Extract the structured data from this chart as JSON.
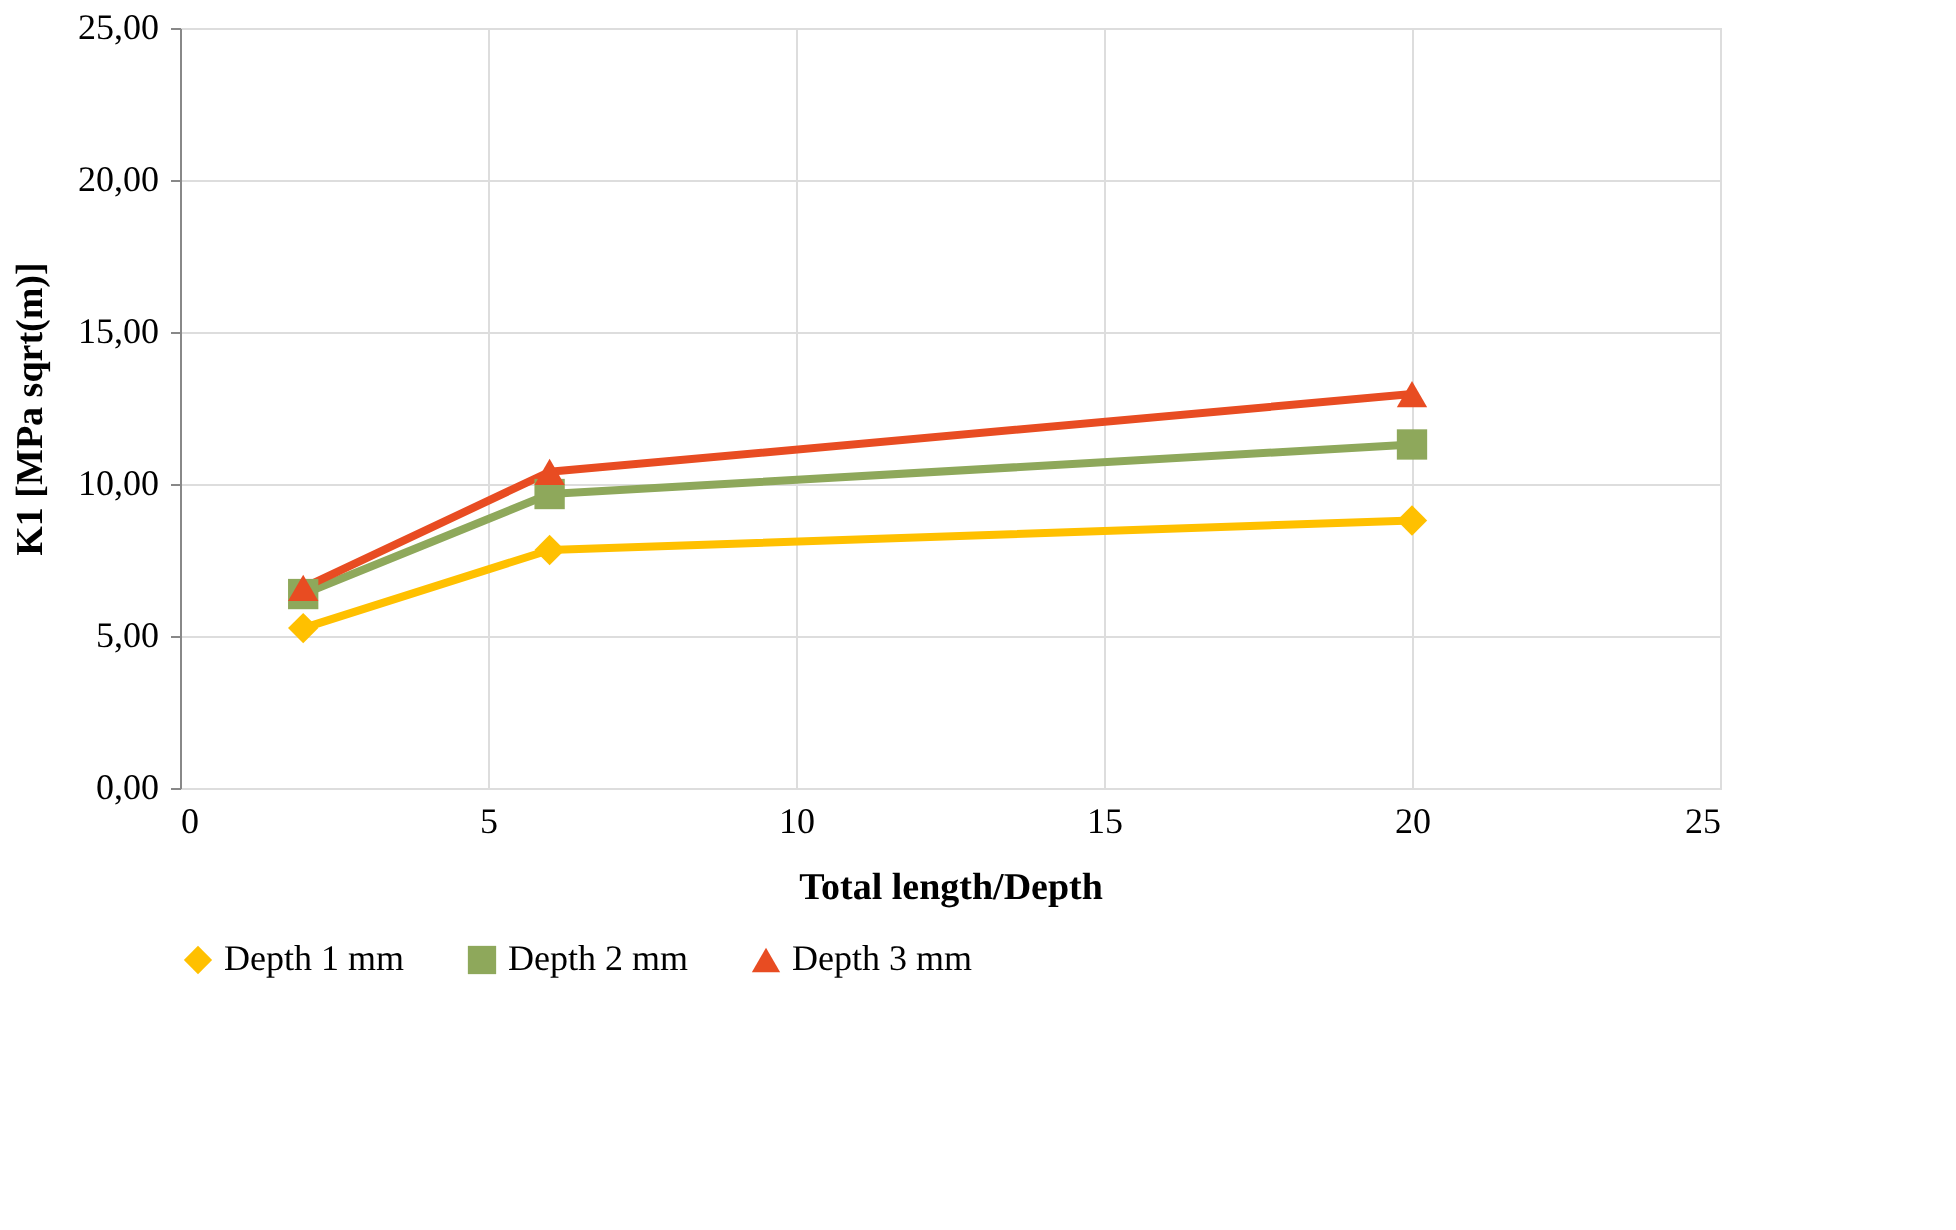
{
  "chart_data": {
    "type": "line",
    "xlabel": "Total length/Depth",
    "ylabel": "K1 [MPa sqrt(m)]",
    "x": [
      2,
      6,
      20
    ],
    "series": [
      {
        "name": "Depth 1 mm",
        "color": "#ffc000",
        "marker": "diamond",
        "values": [
          5.26,
          7.83,
          8.8
        ]
      },
      {
        "name": "Depth 2 mm",
        "color": "#8ea85b",
        "marker": "square",
        "values": [
          6.38,
          9.67,
          11.3
        ]
      },
      {
        "name": "Depth 3 mm",
        "color": "#e84c22",
        "marker": "triangle",
        "values": [
          6.58,
          10.4,
          12.96
        ]
      }
    ],
    "xlim": [
      0,
      25
    ],
    "xticks": [
      0,
      5,
      10,
      15,
      20,
      25
    ],
    "ylim": [
      0,
      25
    ],
    "yticks": [
      {
        "value": 0,
        "label": "0,00"
      },
      {
        "value": 5,
        "label": "5,00"
      },
      {
        "value": 10,
        "label": "10,00"
      },
      {
        "value": 15,
        "label": "15,00"
      },
      {
        "value": 20,
        "label": "20,00"
      },
      {
        "value": 25,
        "label": "25,00"
      }
    ],
    "grid": true,
    "legend": "bottom",
    "line_style": "solid"
  }
}
